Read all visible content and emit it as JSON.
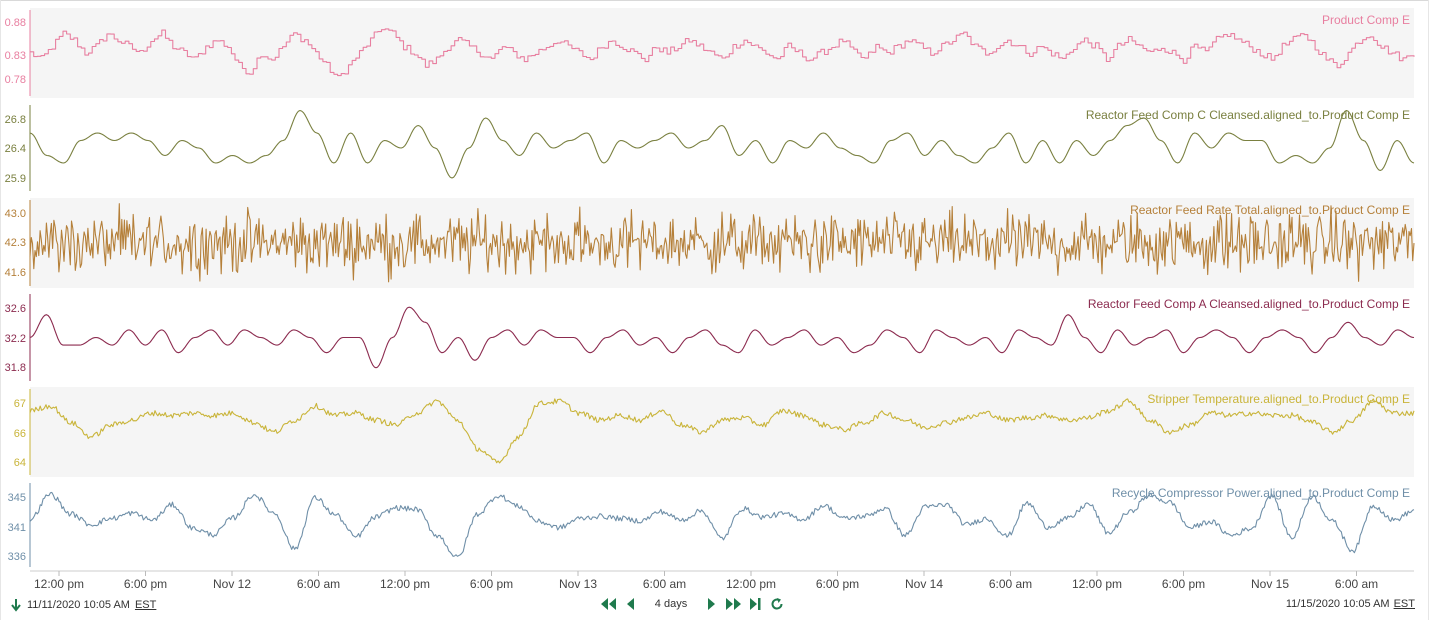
{
  "chart_data": {
    "type": "line",
    "x_range": [
      "11/11/2020 10:05 AM",
      "11/15/2020 10:05 AM"
    ],
    "x_ticks": [
      "12:00 pm",
      "6:00 pm",
      "Nov 12",
      "6:00 am",
      "12:00 pm",
      "6:00 pm",
      "Nov 13",
      "6:00 am",
      "12:00 pm",
      "6:00 pm",
      "Nov 14",
      "6:00 am",
      "12:00 pm",
      "6:00 pm",
      "Nov 15",
      "6:00 am"
    ],
    "grid": false,
    "legend": "none",
    "lanes": [
      {
        "name": "Product Comp E",
        "color": "#e87fa0",
        "ylim": [
          0.76,
          0.9
        ],
        "y_ticks": [
          "0.88",
          "0.83",
          "0.78"
        ],
        "shaded": true,
        "style": "step",
        "values": [
          0.83,
          0.82,
          0.84,
          0.86,
          0.85,
          0.83,
          0.84,
          0.86,
          0.85,
          0.84,
          0.83,
          0.85,
          0.86,
          0.84,
          0.83,
          0.82,
          0.84,
          0.85,
          0.84,
          0.81,
          0.8,
          0.83,
          0.82,
          0.84,
          0.86,
          0.85,
          0.83,
          0.81,
          0.79,
          0.81,
          0.83,
          0.85,
          0.87,
          0.86,
          0.84,
          0.83,
          0.81,
          0.82,
          0.84,
          0.85,
          0.84,
          0.83,
          0.82,
          0.84,
          0.83,
          0.82,
          0.83,
          0.84,
          0.85,
          0.84,
          0.83,
          0.82,
          0.84,
          0.85,
          0.84,
          0.83,
          0.82,
          0.84,
          0.83,
          0.84,
          0.85,
          0.84,
          0.83,
          0.82,
          0.84,
          0.85,
          0.84,
          0.83,
          0.82,
          0.84,
          0.83,
          0.82,
          0.83,
          0.84,
          0.85,
          0.83,
          0.82,
          0.84,
          0.83,
          0.84,
          0.85,
          0.84,
          0.83,
          0.84,
          0.85,
          0.86,
          0.84,
          0.83,
          0.84,
          0.85,
          0.84,
          0.83,
          0.84,
          0.83,
          0.82,
          0.84,
          0.85,
          0.84,
          0.82,
          0.84,
          0.85,
          0.84,
          0.83,
          0.84,
          0.83,
          0.82,
          0.84,
          0.83,
          0.85,
          0.86,
          0.85,
          0.84,
          0.83,
          0.82,
          0.84,
          0.85,
          0.86,
          0.84,
          0.82,
          0.81,
          0.83,
          0.85,
          0.86,
          0.84,
          0.83,
          0.82,
          0.83
        ]
      },
      {
        "name": "Reactor Feed Comp C Cleansed.aligned_to.Product Comp E",
        "color": "#7a8040",
        "ylim": [
          25.8,
          27.0
        ],
        "y_ticks": [
          "26.8",
          "26.4",
          "25.9"
        ],
        "shaded": false,
        "style": "smooth",
        "values": [
          26.6,
          26.3,
          26.2,
          26.5,
          26.6,
          26.5,
          26.6,
          26.5,
          26.3,
          26.5,
          26.4,
          26.2,
          26.3,
          26.2,
          26.3,
          26.5,
          26.9,
          26.6,
          26.2,
          26.6,
          26.2,
          26.5,
          26.4,
          26.7,
          26.4,
          26.0,
          26.4,
          26.8,
          26.5,
          26.3,
          26.6,
          26.4,
          26.5,
          26.6,
          26.2,
          26.5,
          26.4,
          26.5,
          26.6,
          26.4,
          26.5,
          26.7,
          26.3,
          26.5,
          26.2,
          26.5,
          26.4,
          26.6,
          26.4,
          26.3,
          26.2,
          26.5,
          26.6,
          26.3,
          26.5,
          26.3,
          26.2,
          26.4,
          26.6,
          26.2,
          26.5,
          26.2,
          26.5,
          26.3,
          26.5,
          26.7,
          26.8,
          26.5,
          26.2,
          26.6,
          26.4,
          26.6,
          26.5,
          26.5,
          26.2,
          26.3,
          26.2,
          26.4,
          26.9,
          26.5,
          26.1,
          26.5,
          26.2
        ]
      },
      {
        "name": "Reactor Feed Rate Total.aligned_to.Product Comp E",
        "color": "#b5803a",
        "ylim": [
          41.3,
          43.3
        ],
        "y_ticks": [
          "43.0",
          "42.3",
          "41.6"
        ],
        "shaded": true,
        "style": "noise",
        "values": [
          42.3,
          42.3
        ]
      },
      {
        "name": "Reactor Feed Comp A Cleansed.aligned_to.Product Comp E",
        "color": "#8c2b4f",
        "ylim": [
          31.6,
          32.8
        ],
        "y_ticks": [
          "32.6",
          "32.2",
          "31.8"
        ],
        "shaded": false,
        "style": "smooth",
        "values": [
          32.2,
          32.5,
          32.1,
          32.1,
          32.2,
          32.1,
          32.3,
          32.1,
          32.3,
          32.0,
          32.2,
          32.3,
          32.1,
          32.3,
          32.2,
          32.1,
          32.3,
          32.2,
          32.0,
          32.2,
          32.2,
          31.8,
          32.2,
          32.6,
          32.4,
          32.0,
          32.2,
          31.9,
          32.2,
          32.3,
          32.1,
          32.3,
          32.2,
          32.2,
          32.0,
          32.2,
          32.3,
          32.1,
          32.2,
          32.0,
          32.2,
          32.3,
          32.1,
          32.0,
          32.3,
          32.1,
          32.2,
          32.3,
          32.1,
          32.2,
          32.0,
          32.1,
          32.3,
          32.2,
          32.0,
          32.3,
          32.2,
          32.1,
          32.2,
          32.0,
          32.3,
          32.2,
          32.1,
          32.5,
          32.2,
          32.0,
          32.3,
          32.1,
          32.2,
          32.3,
          32.0,
          32.2,
          32.3,
          32.2,
          32.0,
          32.2,
          32.3,
          32.2,
          32.0,
          32.2,
          32.4,
          32.2,
          32.1,
          32.3,
          32.2
        ]
      },
      {
        "name": "Stripper Temperature.aligned_to.Product Comp E",
        "color": "#c9b439",
        "ylim": [
          63.6,
          67.4
        ],
        "y_ticks": [
          "67",
          "66",
          "64"
        ],
        "shaded": true,
        "style": "wiggle",
        "values": [
          66.4,
          66.6,
          65.9,
          65.3,
          65.8,
          66.0,
          66.3,
          66.2,
          66.3,
          66.2,
          66.3,
          65.9,
          65.5,
          66.0,
          66.6,
          66.2,
          66.3,
          66.0,
          65.8,
          66.3,
          66.8,
          66.0,
          64.8,
          64.2,
          65.3,
          66.7,
          66.8,
          66.3,
          66.0,
          66.2,
          66.0,
          66.4,
          65.8,
          65.5,
          66.0,
          66.1,
          65.8,
          66.4,
          66.2,
          65.8,
          65.6,
          65.9,
          66.3,
          66.0,
          65.7,
          65.9,
          66.1,
          66.3,
          66.0,
          66.1,
          66.2,
          66.0,
          66.1,
          66.4,
          66.8,
          66.0,
          65.5,
          65.8,
          66.3,
          66.2,
          66.3,
          66.2,
          66.2,
          65.9,
          65.5,
          66.0,
          66.8,
          66.3,
          66.3
        ]
      },
      {
        "name": "Recycle Compressor Power.aligned_to.Product Comp E",
        "color": "#6f8fa8",
        "ylim": [
          335.0,
          346.5
        ],
        "y_ticks": [
          "345",
          "341",
          "336"
        ],
        "shaded": false,
        "style": "wiggle",
        "values": [
          341.5,
          344.8,
          342.2,
          340.8,
          341.6,
          342.3,
          341.4,
          343.4,
          340.3,
          339.5,
          341.7,
          344.7,
          342.3,
          337.6,
          344.3,
          342.1,
          339.2,
          341.8,
          343.0,
          342.8,
          339.4,
          336.5,
          342.2,
          344.6,
          343.2,
          341.2,
          340.4,
          341.6,
          341.9,
          341.6,
          341.3,
          342.5,
          341.4,
          342.6,
          339.0,
          342.9,
          341.8,
          342.2,
          341.5,
          343.3,
          341.6,
          341.9,
          342.9,
          339.4,
          343.1,
          343.4,
          340.8,
          341.6,
          339.3,
          343.6,
          340.5,
          341.6,
          343.5,
          339.7,
          342.4,
          344.6,
          343.7,
          340.4,
          341.2,
          339.4,
          340.3,
          344.6,
          339.1,
          344.5,
          341.2,
          337.4,
          343.3,
          341.4,
          342.6
        ]
      }
    ]
  },
  "footer": {
    "start_time": "11/11/2020 10:05 AM",
    "start_tz": "EST",
    "end_time": "11/15/2020 10:05 AM",
    "end_tz": "EST",
    "duration": "4 days",
    "icons": [
      "arrow-down-icon",
      "step-back-large-icon",
      "step-back-icon",
      "step-forward-icon",
      "step-forward-large-icon",
      "skip-to-end-icon",
      "refresh-icon"
    ],
    "nav_color": "#1f7a4d"
  }
}
